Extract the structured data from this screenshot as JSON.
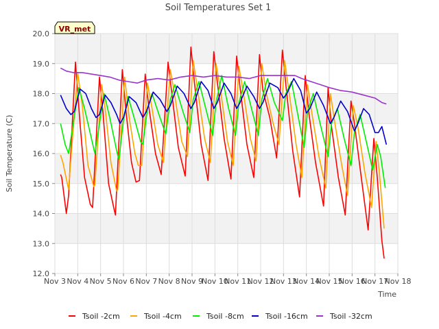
{
  "chart_data": {
    "type": "line",
    "title": "Soil Temperatures Set 1",
    "xlabel": "Time",
    "ylabel": "Soil Temperature (C)",
    "badge": "VR_met",
    "ylim": [
      12.0,
      20.0
    ],
    "xlim": [
      3,
      18
    ],
    "x_ticks": [
      3,
      4,
      5,
      6,
      7,
      8,
      9,
      10,
      11,
      12,
      13,
      14,
      15,
      16,
      17,
      18
    ],
    "x_tick_labels": [
      "Nov 3",
      "Nov 4",
      "Nov 5",
      "Nov 6",
      "Nov 7",
      "Nov 8",
      "Nov 9",
      "Nov 10",
      "Nov 11",
      "Nov 12",
      "Nov 13",
      "Nov 14",
      "Nov 15",
      "Nov 16",
      "Nov 17",
      "Nov 18"
    ],
    "y_ticks": [
      12.0,
      13.0,
      14.0,
      15.0,
      16.0,
      17.0,
      18.0,
      19.0,
      20.0
    ],
    "y_tick_labels": [
      "12.0",
      "13.0",
      "14.0",
      "15.0",
      "16.0",
      "17.0",
      "18.0",
      "19.0",
      "20.0"
    ],
    "grid": true,
    "legend_position": "bottom",
    "series": [
      {
        "name": "Tsoil -2cm",
        "color": "#ff0000",
        "points": [
          [
            3.25,
            15.3
          ],
          [
            3.3,
            15.2
          ],
          [
            3.5,
            14.0
          ],
          [
            3.6,
            14.6
          ],
          [
            3.9,
            19.05
          ],
          [
            4.1,
            17.0
          ],
          [
            4.3,
            15.2
          ],
          [
            4.55,
            14.3
          ],
          [
            4.65,
            14.2
          ],
          [
            4.95,
            18.55
          ],
          [
            5.1,
            17.4
          ],
          [
            5.35,
            15.0
          ],
          [
            5.6,
            14.1
          ],
          [
            5.65,
            13.95
          ],
          [
            5.95,
            18.8
          ],
          [
            6.1,
            17.5
          ],
          [
            6.35,
            15.7
          ],
          [
            6.55,
            15.05
          ],
          [
            6.7,
            15.1
          ],
          [
            6.95,
            18.65
          ],
          [
            7.1,
            17.6
          ],
          [
            7.4,
            16.0
          ],
          [
            7.65,
            15.3
          ],
          [
            7.95,
            19.05
          ],
          [
            8.1,
            18.1
          ],
          [
            8.4,
            16.2
          ],
          [
            8.7,
            15.25
          ],
          [
            8.95,
            19.55
          ],
          [
            9.1,
            18.4
          ],
          [
            9.4,
            16.3
          ],
          [
            9.7,
            15.1
          ],
          [
            9.95,
            19.4
          ],
          [
            10.1,
            18.4
          ],
          [
            10.4,
            16.5
          ],
          [
            10.7,
            15.15
          ],
          [
            10.95,
            19.25
          ],
          [
            11.1,
            18.2
          ],
          [
            11.4,
            16.3
          ],
          [
            11.7,
            15.2
          ],
          [
            11.95,
            19.3
          ],
          [
            12.1,
            18.1
          ],
          [
            12.4,
            17.2
          ],
          [
            12.7,
            15.85
          ],
          [
            12.95,
            19.45
          ],
          [
            13.1,
            18.3
          ],
          [
            13.4,
            16.1
          ],
          [
            13.7,
            14.55
          ],
          [
            13.95,
            18.6
          ],
          [
            14.1,
            17.4
          ],
          [
            14.4,
            15.7
          ],
          [
            14.75,
            14.25
          ],
          [
            14.95,
            18.2
          ],
          [
            15.1,
            16.9
          ],
          [
            15.4,
            15.2
          ],
          [
            15.7,
            13.95
          ],
          [
            15.95,
            17.75
          ],
          [
            16.1,
            17.0
          ],
          [
            16.4,
            15.2
          ],
          [
            16.7,
            13.45
          ],
          [
            16.95,
            16.5
          ],
          [
            17.1,
            15.2
          ],
          [
            17.3,
            13.1
          ],
          [
            17.4,
            12.5
          ]
        ]
      },
      {
        "name": "Tsoil -4cm",
        "color": "#ffa500",
        "points": [
          [
            3.25,
            15.95
          ],
          [
            3.35,
            15.7
          ],
          [
            3.6,
            14.8
          ],
          [
            3.75,
            16.3
          ],
          [
            4.0,
            18.7
          ],
          [
            4.2,
            17.6
          ],
          [
            4.45,
            15.6
          ],
          [
            4.7,
            14.9
          ],
          [
            4.75,
            14.95
          ],
          [
            5.05,
            18.3
          ],
          [
            5.2,
            17.5
          ],
          [
            5.45,
            15.7
          ],
          [
            5.7,
            14.75
          ],
          [
            5.75,
            14.8
          ],
          [
            6.05,
            18.55
          ],
          [
            6.25,
            17.2
          ],
          [
            6.5,
            16.0
          ],
          [
            6.65,
            15.6
          ],
          [
            6.8,
            15.6
          ],
          [
            7.05,
            18.35
          ],
          [
            7.25,
            17.5
          ],
          [
            7.5,
            16.3
          ],
          [
            7.75,
            15.7
          ],
          [
            8.05,
            18.8
          ],
          [
            8.25,
            17.9
          ],
          [
            8.55,
            16.4
          ],
          [
            8.8,
            15.9
          ],
          [
            9.05,
            19.1
          ],
          [
            9.25,
            18.1
          ],
          [
            9.55,
            16.5
          ],
          [
            9.8,
            15.7
          ],
          [
            10.05,
            19.0
          ],
          [
            10.25,
            18.1
          ],
          [
            10.55,
            16.4
          ],
          [
            10.8,
            15.6
          ],
          [
            11.05,
            18.9
          ],
          [
            11.25,
            18.0
          ],
          [
            11.55,
            16.5
          ],
          [
            11.8,
            15.75
          ],
          [
            12.05,
            19.0
          ],
          [
            12.25,
            18.0
          ],
          [
            12.55,
            17.0
          ],
          [
            12.8,
            16.3
          ],
          [
            13.05,
            19.1
          ],
          [
            13.25,
            18.0
          ],
          [
            13.55,
            16.3
          ],
          [
            13.8,
            15.2
          ],
          [
            14.05,
            18.3
          ],
          [
            14.25,
            17.3
          ],
          [
            14.55,
            15.9
          ],
          [
            14.85,
            14.85
          ],
          [
            15.05,
            18.0
          ],
          [
            15.25,
            17.0
          ],
          [
            15.55,
            15.6
          ],
          [
            15.8,
            14.6
          ],
          [
            16.05,
            17.6
          ],
          [
            16.25,
            16.9
          ],
          [
            16.55,
            15.4
          ],
          [
            16.85,
            14.2
          ],
          [
            17.05,
            16.4
          ],
          [
            17.2,
            15.3
          ],
          [
            17.4,
            13.5
          ]
        ]
      },
      {
        "name": "Tsoil -8cm",
        "color": "#00ee00",
        "points": [
          [
            3.25,
            17.0
          ],
          [
            3.45,
            16.3
          ],
          [
            3.6,
            16.0
          ],
          [
            3.8,
            17.0
          ],
          [
            4.05,
            18.2
          ],
          [
            4.3,
            17.5
          ],
          [
            4.6,
            16.5
          ],
          [
            4.75,
            16.0
          ],
          [
            4.95,
            17.0
          ],
          [
            5.15,
            18.0
          ],
          [
            5.4,
            17.2
          ],
          [
            5.7,
            16.1
          ],
          [
            5.8,
            15.8
          ],
          [
            6.0,
            17.1
          ],
          [
            6.2,
            17.9
          ],
          [
            6.5,
            17.1
          ],
          [
            6.75,
            16.4
          ],
          [
            6.85,
            16.3
          ],
          [
            7.05,
            17.5
          ],
          [
            7.25,
            18.0
          ],
          [
            7.55,
            17.3
          ],
          [
            7.85,
            16.65
          ],
          [
            8.05,
            17.8
          ],
          [
            8.25,
            18.3
          ],
          [
            8.6,
            17.4
          ],
          [
            8.9,
            16.7
          ],
          [
            9.05,
            17.8
          ],
          [
            9.3,
            18.4
          ],
          [
            9.6,
            17.5
          ],
          [
            9.9,
            16.6
          ],
          [
            10.05,
            17.7
          ],
          [
            10.3,
            18.6
          ],
          [
            10.6,
            17.5
          ],
          [
            10.9,
            16.6
          ],
          [
            11.05,
            17.7
          ],
          [
            11.3,
            18.4
          ],
          [
            11.6,
            17.5
          ],
          [
            11.9,
            16.6
          ],
          [
            12.05,
            17.8
          ],
          [
            12.3,
            18.5
          ],
          [
            12.6,
            17.7
          ],
          [
            12.95,
            17.1
          ],
          [
            13.1,
            18.0
          ],
          [
            13.35,
            18.4
          ],
          [
            13.65,
            17.2
          ],
          [
            13.9,
            16.2
          ],
          [
            14.05,
            17.4
          ],
          [
            14.3,
            18.0
          ],
          [
            14.6,
            17.0
          ],
          [
            14.95,
            15.9
          ],
          [
            15.1,
            17.0
          ],
          [
            15.35,
            17.5
          ],
          [
            15.65,
            16.5
          ],
          [
            15.95,
            15.6
          ],
          [
            16.1,
            16.7
          ],
          [
            16.35,
            17.3
          ],
          [
            16.65,
            16.3
          ],
          [
            16.9,
            15.45
          ],
          [
            17.1,
            16.3
          ],
          [
            17.25,
            15.9
          ],
          [
            17.45,
            14.85
          ]
        ]
      },
      {
        "name": "Tsoil -16cm",
        "color": "#0000cc",
        "points": [
          [
            3.25,
            17.95
          ],
          [
            3.5,
            17.5
          ],
          [
            3.7,
            17.3
          ],
          [
            3.85,
            17.4
          ],
          [
            4.1,
            18.15
          ],
          [
            4.35,
            18.0
          ],
          [
            4.6,
            17.5
          ],
          [
            4.8,
            17.2
          ],
          [
            4.95,
            17.3
          ],
          [
            5.2,
            17.95
          ],
          [
            5.45,
            17.7
          ],
          [
            5.7,
            17.3
          ],
          [
            5.85,
            17.0
          ],
          [
            6.0,
            17.2
          ],
          [
            6.25,
            17.9
          ],
          [
            6.55,
            17.7
          ],
          [
            6.85,
            17.2
          ],
          [
            7.0,
            17.4
          ],
          [
            7.3,
            18.05
          ],
          [
            7.6,
            17.8
          ],
          [
            7.9,
            17.4
          ],
          [
            8.05,
            17.6
          ],
          [
            8.35,
            18.25
          ],
          [
            8.65,
            18.0
          ],
          [
            8.95,
            17.5
          ],
          [
            9.1,
            17.7
          ],
          [
            9.4,
            18.4
          ],
          [
            9.7,
            18.1
          ],
          [
            9.95,
            17.5
          ],
          [
            10.1,
            17.7
          ],
          [
            10.4,
            18.35
          ],
          [
            10.7,
            18.0
          ],
          [
            10.95,
            17.5
          ],
          [
            11.1,
            17.7
          ],
          [
            11.4,
            18.25
          ],
          [
            11.7,
            17.9
          ],
          [
            11.95,
            17.5
          ],
          [
            12.1,
            17.7
          ],
          [
            12.4,
            18.35
          ],
          [
            12.75,
            18.2
          ],
          [
            13.0,
            17.85
          ],
          [
            13.15,
            18.0
          ],
          [
            13.45,
            18.5
          ],
          [
            13.75,
            18.1
          ],
          [
            14.0,
            17.35
          ],
          [
            14.15,
            17.5
          ],
          [
            14.45,
            18.05
          ],
          [
            14.75,
            17.6
          ],
          [
            15.05,
            17.0
          ],
          [
            15.2,
            17.2
          ],
          [
            15.5,
            17.75
          ],
          [
            15.8,
            17.4
          ],
          [
            16.1,
            16.75
          ],
          [
            16.25,
            17.0
          ],
          [
            16.5,
            17.5
          ],
          [
            16.75,
            17.3
          ],
          [
            17.0,
            16.7
          ],
          [
            17.15,
            16.7
          ],
          [
            17.3,
            16.9
          ],
          [
            17.5,
            16.3
          ]
        ]
      },
      {
        "name": "Tsoil -32cm",
        "color": "#9933cc",
        "points": [
          [
            3.25,
            18.85
          ],
          [
            3.5,
            18.75
          ],
          [
            3.8,
            18.7
          ],
          [
            4.2,
            18.7
          ],
          [
            4.6,
            18.65
          ],
          [
            5.0,
            18.6
          ],
          [
            5.4,
            18.55
          ],
          [
            5.8,
            18.45
          ],
          [
            6.2,
            18.4
          ],
          [
            6.6,
            18.35
          ],
          [
            7.0,
            18.45
          ],
          [
            7.5,
            18.5
          ],
          [
            8.0,
            18.45
          ],
          [
            8.5,
            18.55
          ],
          [
            9.0,
            18.6
          ],
          [
            9.5,
            18.55
          ],
          [
            10.0,
            18.6
          ],
          [
            10.5,
            18.55
          ],
          [
            11.0,
            18.55
          ],
          [
            11.5,
            18.5
          ],
          [
            12.0,
            18.6
          ],
          [
            12.5,
            18.6
          ],
          [
            13.0,
            18.6
          ],
          [
            13.5,
            18.6
          ],
          [
            13.8,
            18.5
          ],
          [
            14.2,
            18.4
          ],
          [
            14.6,
            18.3
          ],
          [
            15.0,
            18.2
          ],
          [
            15.5,
            18.1
          ],
          [
            16.0,
            18.05
          ],
          [
            16.5,
            17.95
          ],
          [
            17.0,
            17.85
          ],
          [
            17.3,
            17.7
          ],
          [
            17.5,
            17.65
          ]
        ]
      }
    ]
  }
}
